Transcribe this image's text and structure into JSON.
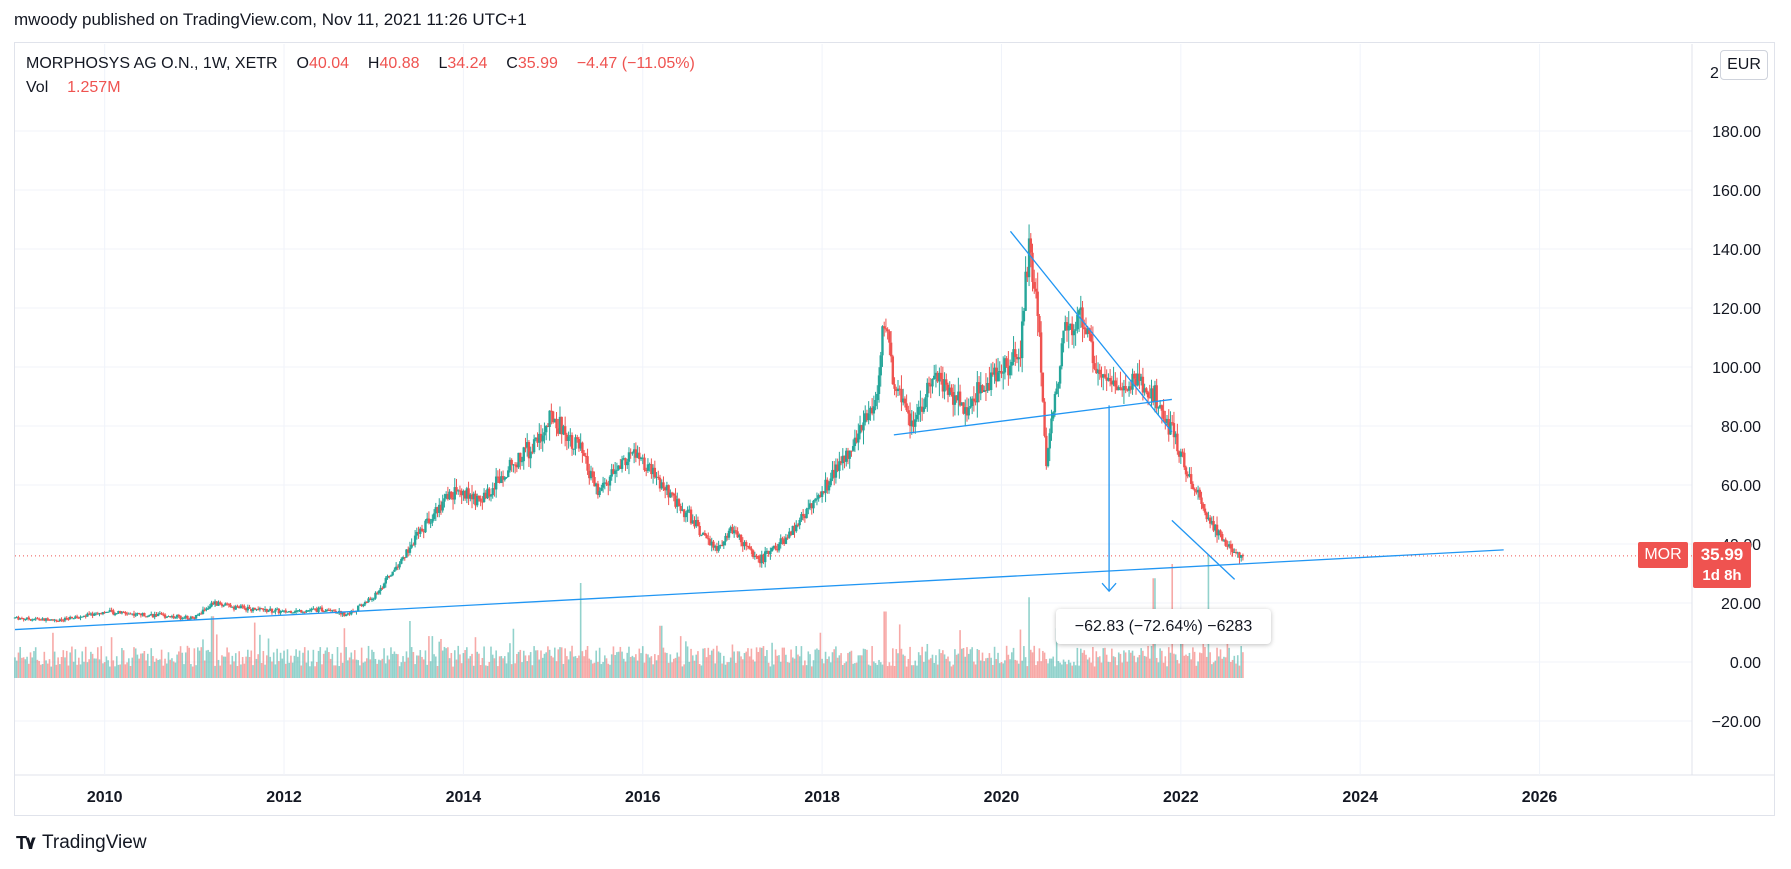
{
  "publisher_line": "mwoody published on TradingView.com, Nov 11, 2021 11:26 UTC+1",
  "legend": {
    "symbol": "MORPHOSYS AG O.N., 1W, XETR",
    "open_label": "O",
    "open": "40.04",
    "high_label": "H",
    "high": "40.88",
    "low_label": "L",
    "low": "34.24",
    "close_label": "C",
    "close": "35.99",
    "change": "−4.47 (−11.05%)",
    "vol_label": "Vol",
    "vol": "1.257M"
  },
  "currency": "EUR",
  "current_price": {
    "symbol": "MOR",
    "price": "35.99",
    "countdown": "1d 8h"
  },
  "measure_label": "−62.83 (−72.64%) −6283",
  "footer_brand": "TradingView",
  "colors": {
    "up": "#26a69a",
    "down": "#ef5350",
    "drawing": "#2196f3",
    "grid": "#f0f3fa"
  },
  "chart_data": {
    "type": "candlestick",
    "title": "MORPHOSYS AG O.N., 1W, XETR",
    "currency": "EUR",
    "y_axis": {
      "ticks": [
        -20,
        0,
        20,
        40,
        60,
        80,
        100,
        120,
        140,
        160,
        180
      ],
      "tick_labels": [
        "−20.00",
        "0.00",
        "20.00",
        "40.00",
        "60.00",
        "80.00",
        "100.00",
        "120.00",
        "140.00",
        "160.00",
        "180.00"
      ],
      "top_label_partial": "2"
    },
    "x_axis": {
      "range": [
        2009.0,
        2027.7
      ],
      "ticks": [
        2010,
        2012,
        2014,
        2016,
        2018,
        2020,
        2022,
        2024,
        2026
      ],
      "tick_labels": [
        "2010",
        "2012",
        "2014",
        "2016",
        "2018",
        "2020",
        "2022",
        "2024",
        "2026"
      ]
    },
    "price_path": [
      [
        2009.0,
        15
      ],
      [
        2009.5,
        14
      ],
      [
        2010.0,
        17
      ],
      [
        2010.5,
        16
      ],
      [
        2011.0,
        15
      ],
      [
        2011.2,
        20
      ],
      [
        2011.6,
        18
      ],
      [
        2012.0,
        17
      ],
      [
        2012.5,
        18
      ],
      [
        2012.7,
        16
      ],
      [
        2013.0,
        22
      ],
      [
        2013.3,
        34
      ],
      [
        2013.6,
        48
      ],
      [
        2013.9,
        58
      ],
      [
        2014.2,
        55
      ],
      [
        2014.5,
        66
      ],
      [
        2014.8,
        74
      ],
      [
        2015.0,
        83
      ],
      [
        2015.3,
        72
      ],
      [
        2015.5,
        57
      ],
      [
        2015.7,
        65
      ],
      [
        2015.9,
        71
      ],
      [
        2016.2,
        60
      ],
      [
        2016.5,
        50
      ],
      [
        2016.8,
        38
      ],
      [
        2017.0,
        45
      ],
      [
        2017.3,
        34
      ],
      [
        2017.6,
        42
      ],
      [
        2017.8,
        50
      ],
      [
        2018.0,
        58
      ],
      [
        2018.3,
        72
      ],
      [
        2018.6,
        88
      ],
      [
        2018.7,
        118
      ],
      [
        2018.8,
        94
      ],
      [
        2019.0,
        82
      ],
      [
        2019.3,
        96
      ],
      [
        2019.6,
        86
      ],
      [
        2019.9,
        98
      ],
      [
        2020.2,
        102
      ],
      [
        2020.3,
        140
      ],
      [
        2020.4,
        120
      ],
      [
        2020.5,
        68
      ],
      [
        2020.7,
        112
      ],
      [
        2020.9,
        116
      ],
      [
        2021.1,
        98
      ],
      [
        2021.3,
        92
      ],
      [
        2021.5,
        96
      ],
      [
        2021.7,
        90
      ],
      [
        2021.8,
        85
      ],
      [
        2021.9,
        78
      ],
      [
        2022.0,
        70
      ],
      [
        2022.1,
        62
      ],
      [
        2022.2,
        56
      ],
      [
        2022.3,
        48
      ],
      [
        2022.4,
        45
      ],
      [
        2022.5,
        40
      ],
      [
        2022.6,
        37
      ],
      [
        2022.7,
        35.99
      ]
    ],
    "volume_spikes": [
      [
        2011.2,
        0.65
      ],
      [
        2013.4,
        0.6
      ],
      [
        2015.3,
        1.0
      ],
      [
        2016.2,
        0.55
      ],
      [
        2018.7,
        0.7
      ],
      [
        2020.3,
        0.85
      ],
      [
        2021.7,
        1.05
      ],
      [
        2021.9,
        1.2
      ],
      [
        2022.3,
        1.3
      ]
    ],
    "last_close": 35.99,
    "drawings": [
      {
        "name": "long-term-support-line",
        "from": [
          2009.0,
          11
        ],
        "to": [
          2025.6,
          38
        ]
      },
      {
        "name": "neckline",
        "from": [
          2018.8,
          77
        ],
        "to": [
          2021.9,
          89
        ]
      },
      {
        "name": "downtrend-line",
        "from": [
          2020.1,
          146
        ],
        "to": [
          2021.9,
          78
        ]
      },
      {
        "name": "short-trend-line",
        "from": [
          2021.9,
          48
        ],
        "to": [
          2022.6,
          28
        ]
      },
      {
        "name": "measure-arrow",
        "from": [
          2021.2,
          87
        ],
        "to": [
          2021.2,
          24
        ]
      }
    ]
  }
}
